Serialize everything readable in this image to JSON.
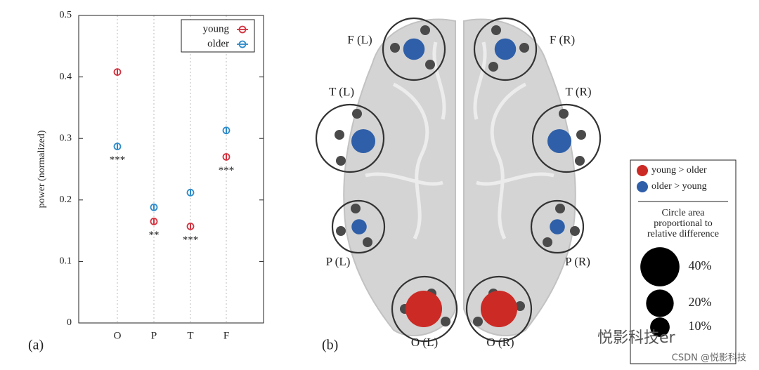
{
  "chart_data": {
    "type": "errorbar",
    "panel_label": "(a)",
    "ylabel": "power (normalized)",
    "categories": [
      "O",
      "P",
      "T",
      "F"
    ],
    "series": [
      {
        "name": "young",
        "color": "#d2323f",
        "values": [
          0.408,
          0.165,
          0.157,
          0.27
        ],
        "errors": [
          0.005,
          0.004,
          0.004,
          0.005
        ]
      },
      {
        "name": "older",
        "color": "#2e8bc9",
        "values": [
          0.287,
          0.188,
          0.212,
          0.313
        ],
        "errors": [
          0.004,
          0.004,
          0.004,
          0.005
        ]
      }
    ],
    "annotations": [
      "***",
      "**",
      "***",
      "***"
    ],
    "ylim": [
      0,
      0.5
    ],
    "yticks": [
      0,
      0.1,
      0.2,
      0.3,
      0.4,
      0.5
    ],
    "grid": true,
    "legend": "upper right"
  },
  "brain_map": {
    "panel_label": "(b)",
    "regions": [
      {
        "label": "F (L)",
        "value": 12,
        "color": "#2f5fa8"
      },
      {
        "label": "F (R)",
        "value": 12,
        "color": "#2f5fa8"
      },
      {
        "label": "T (L)",
        "value": 15,
        "color": "#2f5fa8"
      },
      {
        "label": "T (R)",
        "value": 15,
        "color": "#2f5fa8"
      },
      {
        "label": "P (L)",
        "value": 6,
        "color": "#2f5fa8"
      },
      {
        "label": "P (R)",
        "value": 6,
        "color": "#2f5fa8"
      },
      {
        "label": "O (L)",
        "value": 35,
        "color": "#cc2a25"
      },
      {
        "label": "O (R)",
        "value": 35,
        "color": "#cc2a25"
      }
    ],
    "legend": [
      {
        "label": "young > older",
        "color": "#cc2a25"
      },
      {
        "label": "older > young",
        "color": "#2f5fa8"
      }
    ],
    "size_title": [
      "Circle area",
      "proportional to",
      "relative difference"
    ],
    "sizes": [
      {
        "value": 40,
        "label": "40%"
      },
      {
        "value": 20,
        "label": "20%"
      },
      {
        "value": 10,
        "label": "10%"
      }
    ]
  },
  "watermark": {
    "brand": "悦影科技er",
    "credit": "CSDN @悦影科技"
  }
}
